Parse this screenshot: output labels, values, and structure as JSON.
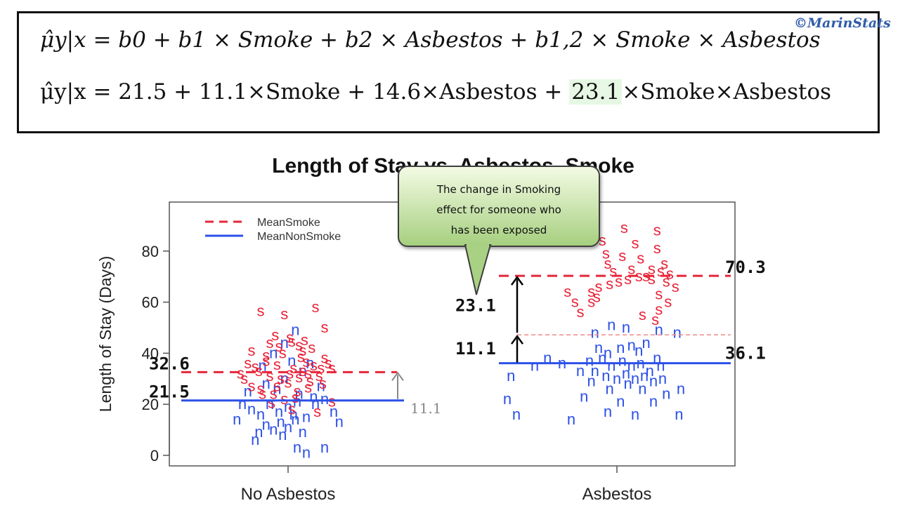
{
  "equations": {
    "general": "μ̂y|x = b0 + b1 × Smoke + b2 × Asbestos + b1,2 × Smoke × Asbestos",
    "fitted_prefix": "μ̂y|x = 21.5 + 11.1×Smoke + 14.6×Asbestos + ",
    "fitted_highlight": "23.1",
    "fitted_suffix": "×Smoke×Asbestos",
    "highlight_color": "#e6f8e4"
  },
  "copyright": "©MarinStats",
  "callout": {
    "text_line1": "The change in Smoking",
    "text_line2": "effect for someone who",
    "text_line3": "has been exposed"
  },
  "chart_data": {
    "type": "scatter",
    "title": "Length of Stay vs. Asbestos, Smoke",
    "ylabel": "Length of Stay (Days)",
    "xlabel": "",
    "categories": [
      "No Asbestos",
      "Asbestos"
    ],
    "ylim": [
      0,
      90
    ],
    "yticks": [
      0,
      20,
      40,
      60,
      80
    ],
    "legend": {
      "placement": "top-left",
      "entries": [
        "MeanSmoke",
        "MeanNonSmoke"
      ]
    },
    "colors": {
      "smoke": "#e8253a",
      "nonsmoke": "#2b50e8",
      "box": "#555555",
      "arrow": "#888888"
    },
    "series": [
      {
        "name": "MeanSmoke",
        "marker": "s",
        "group_means": [
          32.6,
          70.3
        ]
      },
      {
        "name": "MeanNonSmoke",
        "marker": "n",
        "group_means": [
          21.5,
          36.1
        ]
      }
    ],
    "annotations": {
      "left_smoke_mean": "32.6",
      "left_nonsmoke_mean": "21.5",
      "left_diff": "11.1",
      "right_smoke_mean": "70.3",
      "right_nonsmoke_mean": "36.1",
      "right_diff_lower": "11.1",
      "right_diff_upper": "23.1",
      "right_expected_no_interaction": 47.2
    },
    "points": {
      "no_asbestos_smoke": [
        [
          -0.15,
          56.4
        ],
        [
          -0.02,
          55.2
        ],
        [
          0.15,
          58
        ],
        [
          0.2,
          50
        ],
        [
          -0.1,
          44
        ],
        [
          -0.05,
          42.6
        ],
        [
          0.02,
          44.5
        ],
        [
          0.08,
          41
        ],
        [
          -0.22,
          36
        ],
        [
          -0.18,
          34.6
        ],
        [
          -0.12,
          37
        ],
        [
          -0.06,
          35.5
        ],
        [
          0.03,
          34
        ],
        [
          0.1,
          36.5
        ],
        [
          0.14,
          35.2
        ],
        [
          0.2,
          38
        ],
        [
          -0.1,
          31
        ],
        [
          -0.04,
          30
        ],
        [
          0.01,
          32
        ],
        [
          0.06,
          30.5
        ],
        [
          0.12,
          29
        ],
        [
          -0.2,
          27
        ],
        [
          -0.15,
          26
        ],
        [
          -0.08,
          24
        ],
        [
          0,
          28.5
        ],
        [
          0.05,
          25
        ],
        [
          0.18,
          34
        ],
        [
          0.22,
          36
        ],
        [
          -0.24,
          30
        ],
        [
          0.16,
          17
        ],
        [
          -0.14,
          24
        ],
        [
          -0.06,
          27
        ],
        [
          0.08,
          33
        ],
        [
          0.11,
          26.5
        ],
        [
          -0.02,
          22
        ],
        [
          0.04,
          22.5
        ],
        [
          -0.12,
          39
        ],
        [
          -0.03,
          40
        ],
        [
          0.07,
          38.5
        ],
        [
          0.13,
          42
        ],
        [
          0.17,
          31
        ],
        [
          0.24,
          34
        ],
        [
          -0.09,
          20.5
        ],
        [
          0.02,
          18
        ],
        [
          -0.16,
          33
        ],
        [
          -0.26,
          32
        ],
        [
          0.09,
          45
        ],
        [
          -0.07,
          47
        ],
        [
          0.01,
          46
        ],
        [
          0.19,
          28
        ],
        [
          0.24,
          21
        ],
        [
          -0.2,
          41
        ],
        [
          0.06,
          43
        ],
        [
          0.11,
          32
        ]
      ],
      "no_asbestos_nonsmoke": [
        [
          -0.18,
          6
        ],
        [
          -0.16,
          9
        ],
        [
          -0.12,
          12
        ],
        [
          -0.08,
          10
        ],
        [
          -0.04,
          13
        ],
        [
          0,
          11
        ],
        [
          0.04,
          14
        ],
        [
          0.08,
          9
        ],
        [
          0.05,
          3
        ],
        [
          0.1,
          1
        ],
        [
          0.2,
          3
        ],
        [
          -0.2,
          18
        ],
        [
          -0.15,
          16
        ],
        [
          -0.1,
          20
        ],
        [
          -0.05,
          17
        ],
        [
          0,
          19
        ],
        [
          0.05,
          21
        ],
        [
          0.1,
          15
        ],
        [
          0.15,
          20
        ],
        [
          0.2,
          22
        ],
        [
          -0.22,
          25
        ],
        [
          -0.12,
          28
        ],
        [
          -0.02,
          30
        ],
        [
          0.08,
          33
        ],
        [
          0.18,
          27
        ],
        [
          -0.08,
          40
        ],
        [
          0.02,
          37
        ],
        [
          0.12,
          36
        ],
        [
          -0.25,
          20
        ],
        [
          0.25,
          17
        ],
        [
          -0.28,
          14
        ],
        [
          0.28,
          13
        ],
        [
          -0.02,
          44
        ],
        [
          0.04,
          49
        ],
        [
          -0.14,
          35
        ],
        [
          0.14,
          23
        ],
        [
          -0.06,
          26
        ],
        [
          0.06,
          24
        ],
        [
          0.03,
          16
        ],
        [
          -0.03,
          8
        ]
      ],
      "asbestos_smoke": [
        [
          0.04,
          89
        ],
        [
          0.22,
          88
        ],
        [
          -0.08,
          84
        ],
        [
          0.1,
          83
        ],
        [
          0.22,
          81
        ],
        [
          -0.06,
          79
        ],
        [
          0.03,
          78
        ],
        [
          0.13,
          77
        ],
        [
          0.26,
          75
        ],
        [
          -0.05,
          75
        ],
        [
          0.08,
          73
        ],
        [
          0.19,
          73
        ],
        [
          0.24,
          72
        ],
        [
          0.29,
          71
        ],
        [
          -0.02,
          72
        ],
        [
          0.12,
          70
        ],
        [
          0.19,
          69
        ],
        [
          0.27,
          68
        ],
        [
          -0.1,
          66
        ],
        [
          -0.04,
          67
        ],
        [
          0.01,
          68
        ],
        [
          0.06,
          69
        ],
        [
          0.16,
          70
        ],
        [
          -0.14,
          64
        ],
        [
          -0.11,
          62
        ],
        [
          0.23,
          63
        ],
        [
          0.32,
          66
        ],
        [
          -0.23,
          60
        ],
        [
          -0.14,
          60
        ],
        [
          0.23,
          57
        ],
        [
          0.28,
          60
        ],
        [
          -0.2,
          56
        ],
        [
          0.21,
          53
        ],
        [
          0.14,
          55
        ],
        [
          -0.27,
          64
        ]
      ],
      "asbestos_nonsmoke": [
        [
          -0.12,
          48
        ],
        [
          -0.03,
          51
        ],
        [
          0.05,
          50
        ],
        [
          0.23,
          49
        ],
        [
          0.33,
          48
        ],
        [
          -0.1,
          42
        ],
        [
          -0.05,
          40
        ],
        [
          0.02,
          42
        ],
        [
          0.08,
          43
        ],
        [
          0.12,
          41
        ],
        [
          0.16,
          44
        ],
        [
          0.22,
          38
        ],
        [
          -0.15,
          37
        ],
        [
          -0.08,
          38
        ],
        [
          -0.03,
          35
        ],
        [
          0.03,
          37
        ],
        [
          0.08,
          35
        ],
        [
          0.13,
          36
        ],
        [
          0.18,
          33
        ],
        [
          0.24,
          35
        ],
        [
          -0.2,
          33
        ],
        [
          -0.12,
          33
        ],
        [
          -0.06,
          31
        ],
        [
          0.0,
          30
        ],
        [
          0.05,
          32
        ],
        [
          0.1,
          30
        ],
        [
          0.15,
          31
        ],
        [
          0.2,
          29
        ],
        [
          -0.14,
          29
        ],
        [
          -0.04,
          26
        ],
        [
          0.06,
          28
        ],
        [
          0.14,
          26
        ],
        [
          0.25,
          30
        ],
        [
          0.35,
          26
        ],
        [
          -0.3,
          36
        ],
        [
          -0.38,
          38
        ],
        [
          -0.58,
          31
        ],
        [
          -0.45,
          35
        ],
        [
          -0.6,
          22
        ],
        [
          -0.55,
          16
        ],
        [
          -0.25,
          14
        ],
        [
          -0.05,
          17
        ],
        [
          0.1,
          16
        ],
        [
          0.2,
          21
        ],
        [
          0.34,
          16
        ],
        [
          0.27,
          24
        ],
        [
          -0.18,
          23
        ],
        [
          0.02,
          21
        ]
      ]
    }
  }
}
